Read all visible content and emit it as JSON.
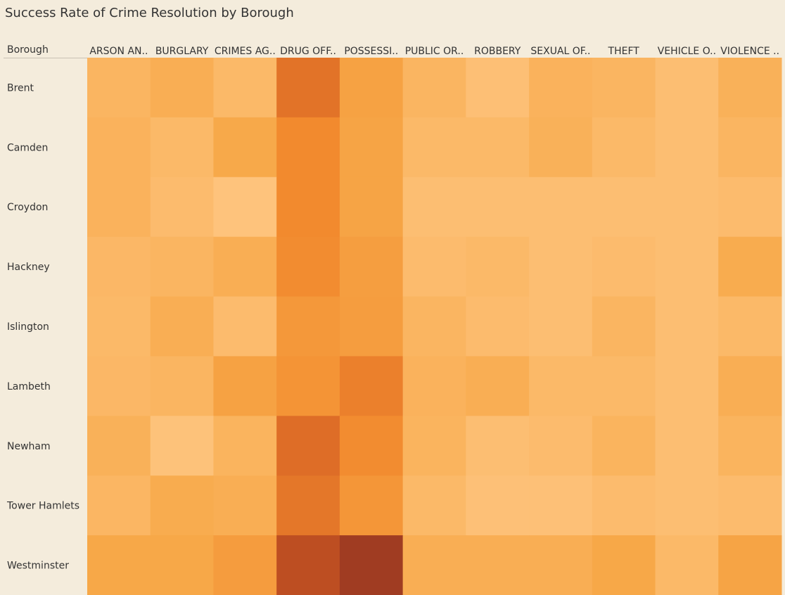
{
  "chart_data": {
    "type": "heatmap",
    "title": "Success Rate of Crime Resolution by Borough",
    "row_header": "Borough",
    "columns": [
      "ARSON AN..",
      "BURGLARY",
      "CRIMES AG..",
      "DRUG OFF..",
      "POSSESSI..",
      "PUBLIC OR..",
      "ROBBERY",
      "SEXUAL OF..",
      "THEFT",
      "VEHICLE O..",
      "VIOLENCE .."
    ],
    "rows": [
      "Brent",
      "Camden",
      "Croydon",
      "Hackney",
      "Islington",
      "Lambeth",
      "Newham",
      "Tower Hamlets",
      "Westminster"
    ],
    "values": [
      [
        0.15,
        0.2,
        0.12,
        0.62,
        0.3,
        0.15,
        0.07,
        0.17,
        0.15,
        0.08,
        0.18
      ],
      [
        0.17,
        0.12,
        0.24,
        0.5,
        0.28,
        0.12,
        0.12,
        0.18,
        0.12,
        0.08,
        0.15
      ],
      [
        0.17,
        0.1,
        0.04,
        0.5,
        0.28,
        0.08,
        0.08,
        0.08,
        0.08,
        0.08,
        0.1
      ],
      [
        0.13,
        0.15,
        0.2,
        0.48,
        0.33,
        0.1,
        0.12,
        0.08,
        0.1,
        0.08,
        0.22
      ],
      [
        0.12,
        0.2,
        0.1,
        0.38,
        0.34,
        0.15,
        0.1,
        0.08,
        0.15,
        0.08,
        0.12
      ],
      [
        0.13,
        0.15,
        0.3,
        0.42,
        0.55,
        0.17,
        0.2,
        0.12,
        0.12,
        0.08,
        0.2
      ],
      [
        0.18,
        0.05,
        0.16,
        0.65,
        0.48,
        0.16,
        0.08,
        0.1,
        0.16,
        0.08,
        0.16
      ],
      [
        0.14,
        0.22,
        0.2,
        0.6,
        0.4,
        0.12,
        0.06,
        0.06,
        0.1,
        0.08,
        0.1
      ],
      [
        0.25,
        0.25,
        0.35,
        0.85,
        1.0,
        0.2,
        0.2,
        0.2,
        0.25,
        0.12,
        0.28
      ]
    ],
    "color_scale": [
      "#ffc886",
      "#f7a848",
      "#f28a2e",
      "#d05a22",
      "#a03c22"
    ]
  }
}
